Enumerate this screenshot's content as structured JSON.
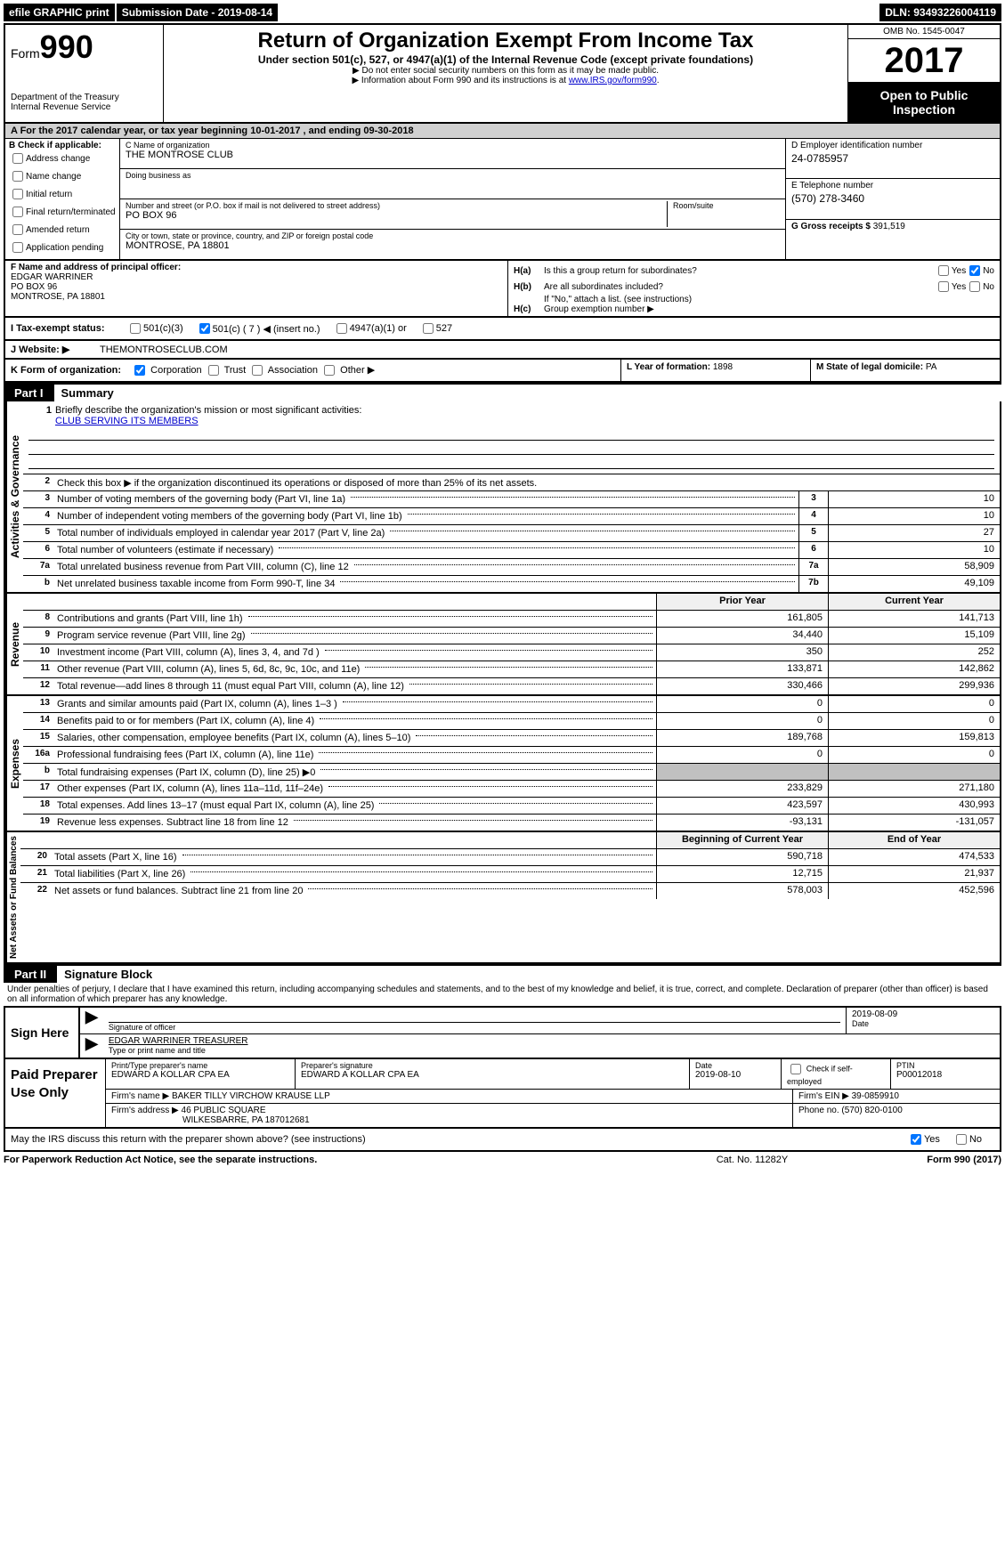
{
  "header_bar": {
    "efile": "efile GRAPHIC print",
    "submission_label": "Submission Date - ",
    "submission_date": "2019-08-14",
    "dln_label": "DLN: ",
    "dln": "93493226004119"
  },
  "form_header": {
    "form_word": "Form",
    "form_number": "990",
    "dept": "Department of the Treasury",
    "irs": "Internal Revenue Service",
    "title": "Return of Organization Exempt From Income Tax",
    "subtitle": "Under section 501(c), 527, or 4947(a)(1) of the Internal Revenue Code (except private foundations)",
    "note1": "▶ Do not enter social security numbers on this form as it may be made public.",
    "note2_pre": "▶ Information about Form 990 and its instructions is at ",
    "note2_link": "www.IRS.gov/form990",
    "note2_post": ".",
    "omb": "OMB No. 1545-0047",
    "year": "2017",
    "inspection": "Open to Public Inspection"
  },
  "section_a": {
    "prefix": "A   For the 2017 calendar year, or tax year beginning ",
    "begin": "10-01-2017",
    "mid": "  , and ending ",
    "end": "09-30-2018"
  },
  "section_b": {
    "header": "B Check if applicable:",
    "items": [
      "Address change",
      "Name change",
      "Initial return",
      "Final return/terminated",
      "Amended return",
      "Application pending"
    ]
  },
  "section_c": {
    "name_label": "C Name of organization",
    "name": "THE MONTROSE CLUB",
    "dba_label": "Doing business as",
    "dba": "",
    "addr_label": "Number and street (or P.O. box if mail is not delivered to street address)",
    "room_label": "Room/suite",
    "addr": "PO BOX 96",
    "city_label": "City or town, state or province, country, and ZIP or foreign postal code",
    "city": "MONTROSE, PA   18801"
  },
  "section_d": {
    "ein_label": "D Employer identification number",
    "ein": "24-0785957",
    "phone_label": "E Telephone number",
    "phone": "(570) 278-3460",
    "gross_label": "G Gross receipts $ ",
    "gross": "391,519"
  },
  "section_f": {
    "label": "F Name and address of principal officer:",
    "name": "EDGAR WARRINER",
    "addr1": "PO BOX 96",
    "addr2": "MONTROSE, PA   18801"
  },
  "section_h": {
    "ha_label": "H(a)",
    "ha_text": "Is this a group return for subordinates?",
    "hb_label": "H(b)",
    "hb_text": "Are all subordinates included?",
    "hb_note": "If \"No,\" attach a list. (see instructions)",
    "hc_label": "H(c)",
    "hc_text": "Group exemption number ▶",
    "yes": "Yes",
    "no": "No"
  },
  "section_i": {
    "label": "I     Tax-exempt status:",
    "opt1": "501(c)(3)",
    "opt2": "501(c) ( 7 ) ◀ (insert no.)",
    "opt3": "4947(a)(1) or",
    "opt4": "527"
  },
  "section_j": {
    "label": "J    Website: ▶",
    "value": "THEMONTROSECLUB.COM"
  },
  "section_k": {
    "label": "K Form of organization:",
    "opts": [
      "Corporation",
      "Trust",
      "Association",
      "Other ▶"
    ]
  },
  "section_l": {
    "label": "L Year of formation: ",
    "value": "1898"
  },
  "section_m": {
    "label": "M State of legal domicile: ",
    "value": "PA"
  },
  "part1": {
    "header": "Part I",
    "title": "Summary",
    "vtext_ag": "Activities & Governance",
    "vtext_rev": "Revenue",
    "vtext_exp": "Expenses",
    "vtext_na": "Net Assets or Fund Balances",
    "line1_label": "Briefly describe the organization's mission or most significant activities:",
    "line1_value": "CLUB SERVING ITS MEMBERS",
    "line2": "Check this box ▶      if the organization discontinued its operations or disposed of more than 25% of its net assets.",
    "lines_ag": [
      {
        "n": "3",
        "d": "Number of voting members of the governing body (Part VI, line 1a)",
        "ref": "3",
        "v": "10"
      },
      {
        "n": "4",
        "d": "Number of independent voting members of the governing body (Part VI, line 1b)",
        "ref": "4",
        "v": "10"
      },
      {
        "n": "5",
        "d": "Total number of individuals employed in calendar year 2017 (Part V, line 2a)",
        "ref": "5",
        "v": "27"
      },
      {
        "n": "6",
        "d": "Total number of volunteers (estimate if necessary)",
        "ref": "6",
        "v": "10"
      },
      {
        "n": "7a",
        "d": "Total unrelated business revenue from Part VIII, column (C), line 12",
        "ref": "7a",
        "v": "58,909"
      },
      {
        "n": "b",
        "d": "Net unrelated business taxable income from Form 990-T, line 34",
        "ref": "7b",
        "v": "49,109"
      }
    ],
    "col_hdr_prior": "Prior Year",
    "col_hdr_current": "Current Year",
    "lines_rev": [
      {
        "n": "8",
        "d": "Contributions and grants (Part VIII, line 1h)",
        "p": "161,805",
        "c": "141,713"
      },
      {
        "n": "9",
        "d": "Program service revenue (Part VIII, line 2g)",
        "p": "34,440",
        "c": "15,109"
      },
      {
        "n": "10",
        "d": "Investment income (Part VIII, column (A), lines 3, 4, and 7d )",
        "p": "350",
        "c": "252"
      },
      {
        "n": "11",
        "d": "Other revenue (Part VIII, column (A), lines 5, 6d, 8c, 9c, 10c, and 11e)",
        "p": "133,871",
        "c": "142,862"
      },
      {
        "n": "12",
        "d": "Total revenue—add lines 8 through 11 (must equal Part VIII, column (A), line 12)",
        "p": "330,466",
        "c": "299,936"
      }
    ],
    "lines_exp": [
      {
        "n": "13",
        "d": "Grants and similar amounts paid (Part IX, column (A), lines 1–3 )",
        "p": "0",
        "c": "0"
      },
      {
        "n": "14",
        "d": "Benefits paid to or for members (Part IX, column (A), line 4)",
        "p": "0",
        "c": "0"
      },
      {
        "n": "15",
        "d": "Salaries, other compensation, employee benefits (Part IX, column (A), lines 5–10)",
        "p": "189,768",
        "c": "159,813"
      },
      {
        "n": "16a",
        "d": "Professional fundraising fees (Part IX, column (A), line 11e)",
        "p": "0",
        "c": "0"
      },
      {
        "n": "b",
        "d": "Total fundraising expenses (Part IX, column (D), line 25) ▶0",
        "p": "",
        "c": "",
        "shaded": true
      },
      {
        "n": "17",
        "d": "Other expenses (Part IX, column (A), lines 11a–11d, 11f–24e)",
        "p": "233,829",
        "c": "271,180"
      },
      {
        "n": "18",
        "d": "Total expenses. Add lines 13–17 (must equal Part IX, column (A), line 25)",
        "p": "423,597",
        "c": "430,993"
      },
      {
        "n": "19",
        "d": "Revenue less expenses. Subtract line 18 from line 12",
        "p": "-93,131",
        "c": "-131,057"
      }
    ],
    "col_hdr_begin": "Beginning of Current Year",
    "col_hdr_end": "End of Year",
    "lines_na": [
      {
        "n": "20",
        "d": "Total assets (Part X, line 16)",
        "p": "590,718",
        "c": "474,533"
      },
      {
        "n": "21",
        "d": "Total liabilities (Part X, line 26)",
        "p": "12,715",
        "c": "21,937"
      },
      {
        "n": "22",
        "d": "Net assets or fund balances. Subtract line 21 from line 20",
        "p": "578,003",
        "c": "452,596"
      }
    ]
  },
  "part2": {
    "header": "Part II",
    "title": "Signature Block",
    "declaration": "Under penalties of perjury, I declare that I have examined this return, including accompanying schedules and statements, and to the best of my knowledge and belief, it is true, correct, and complete. Declaration of preparer (other than officer) is based on all information of which preparer has any knowledge.",
    "sign_here": "Sign Here",
    "sig_officer_label": "Signature of officer",
    "sig_date": "2019-08-09",
    "sig_date_label": "Date",
    "officer_name": "EDGAR WARRINER  TREASURER",
    "officer_name_label": "Type or print name and title",
    "paid_prep": "Paid Preparer Use Only",
    "prep_name_label": "Print/Type preparer's name",
    "prep_name": "EDWARD A KOLLAR CPA EA",
    "prep_sig_label": "Preparer's signature",
    "prep_sig": "EDWARD A KOLLAR CPA EA",
    "prep_date_label": "Date",
    "prep_date": "2019-08-10",
    "self_emp_label": "Check         if self-employed",
    "ptin_label": "PTIN",
    "ptin": "P00012018",
    "firm_name_label": "Firm's name      ▶ ",
    "firm_name": "BAKER TILLY VIRCHOW KRAUSE LLP",
    "firm_ein_label": "Firm's EIN ▶ ",
    "firm_ein": "39-0859910",
    "firm_addr_label": "Firm's address ▶ ",
    "firm_addr": "46 PUBLIC SQUARE",
    "firm_city": "WILKESBARRE, PA  187012681",
    "firm_phone_label": "Phone no. ",
    "firm_phone": "(570) 820-0100",
    "discuss": "May the IRS discuss this return with the preparer shown above? (see instructions)",
    "yes": "Yes",
    "no": "No"
  },
  "footer": {
    "left": "For Paperwork Reduction Act Notice, see the separate instructions.",
    "mid": "Cat. No. 11282Y",
    "right": "Form 990 (2017)"
  },
  "colors": {
    "black": "#000000",
    "shade": "#d0d0d0",
    "cell_shade": "#c0c0c0"
  }
}
